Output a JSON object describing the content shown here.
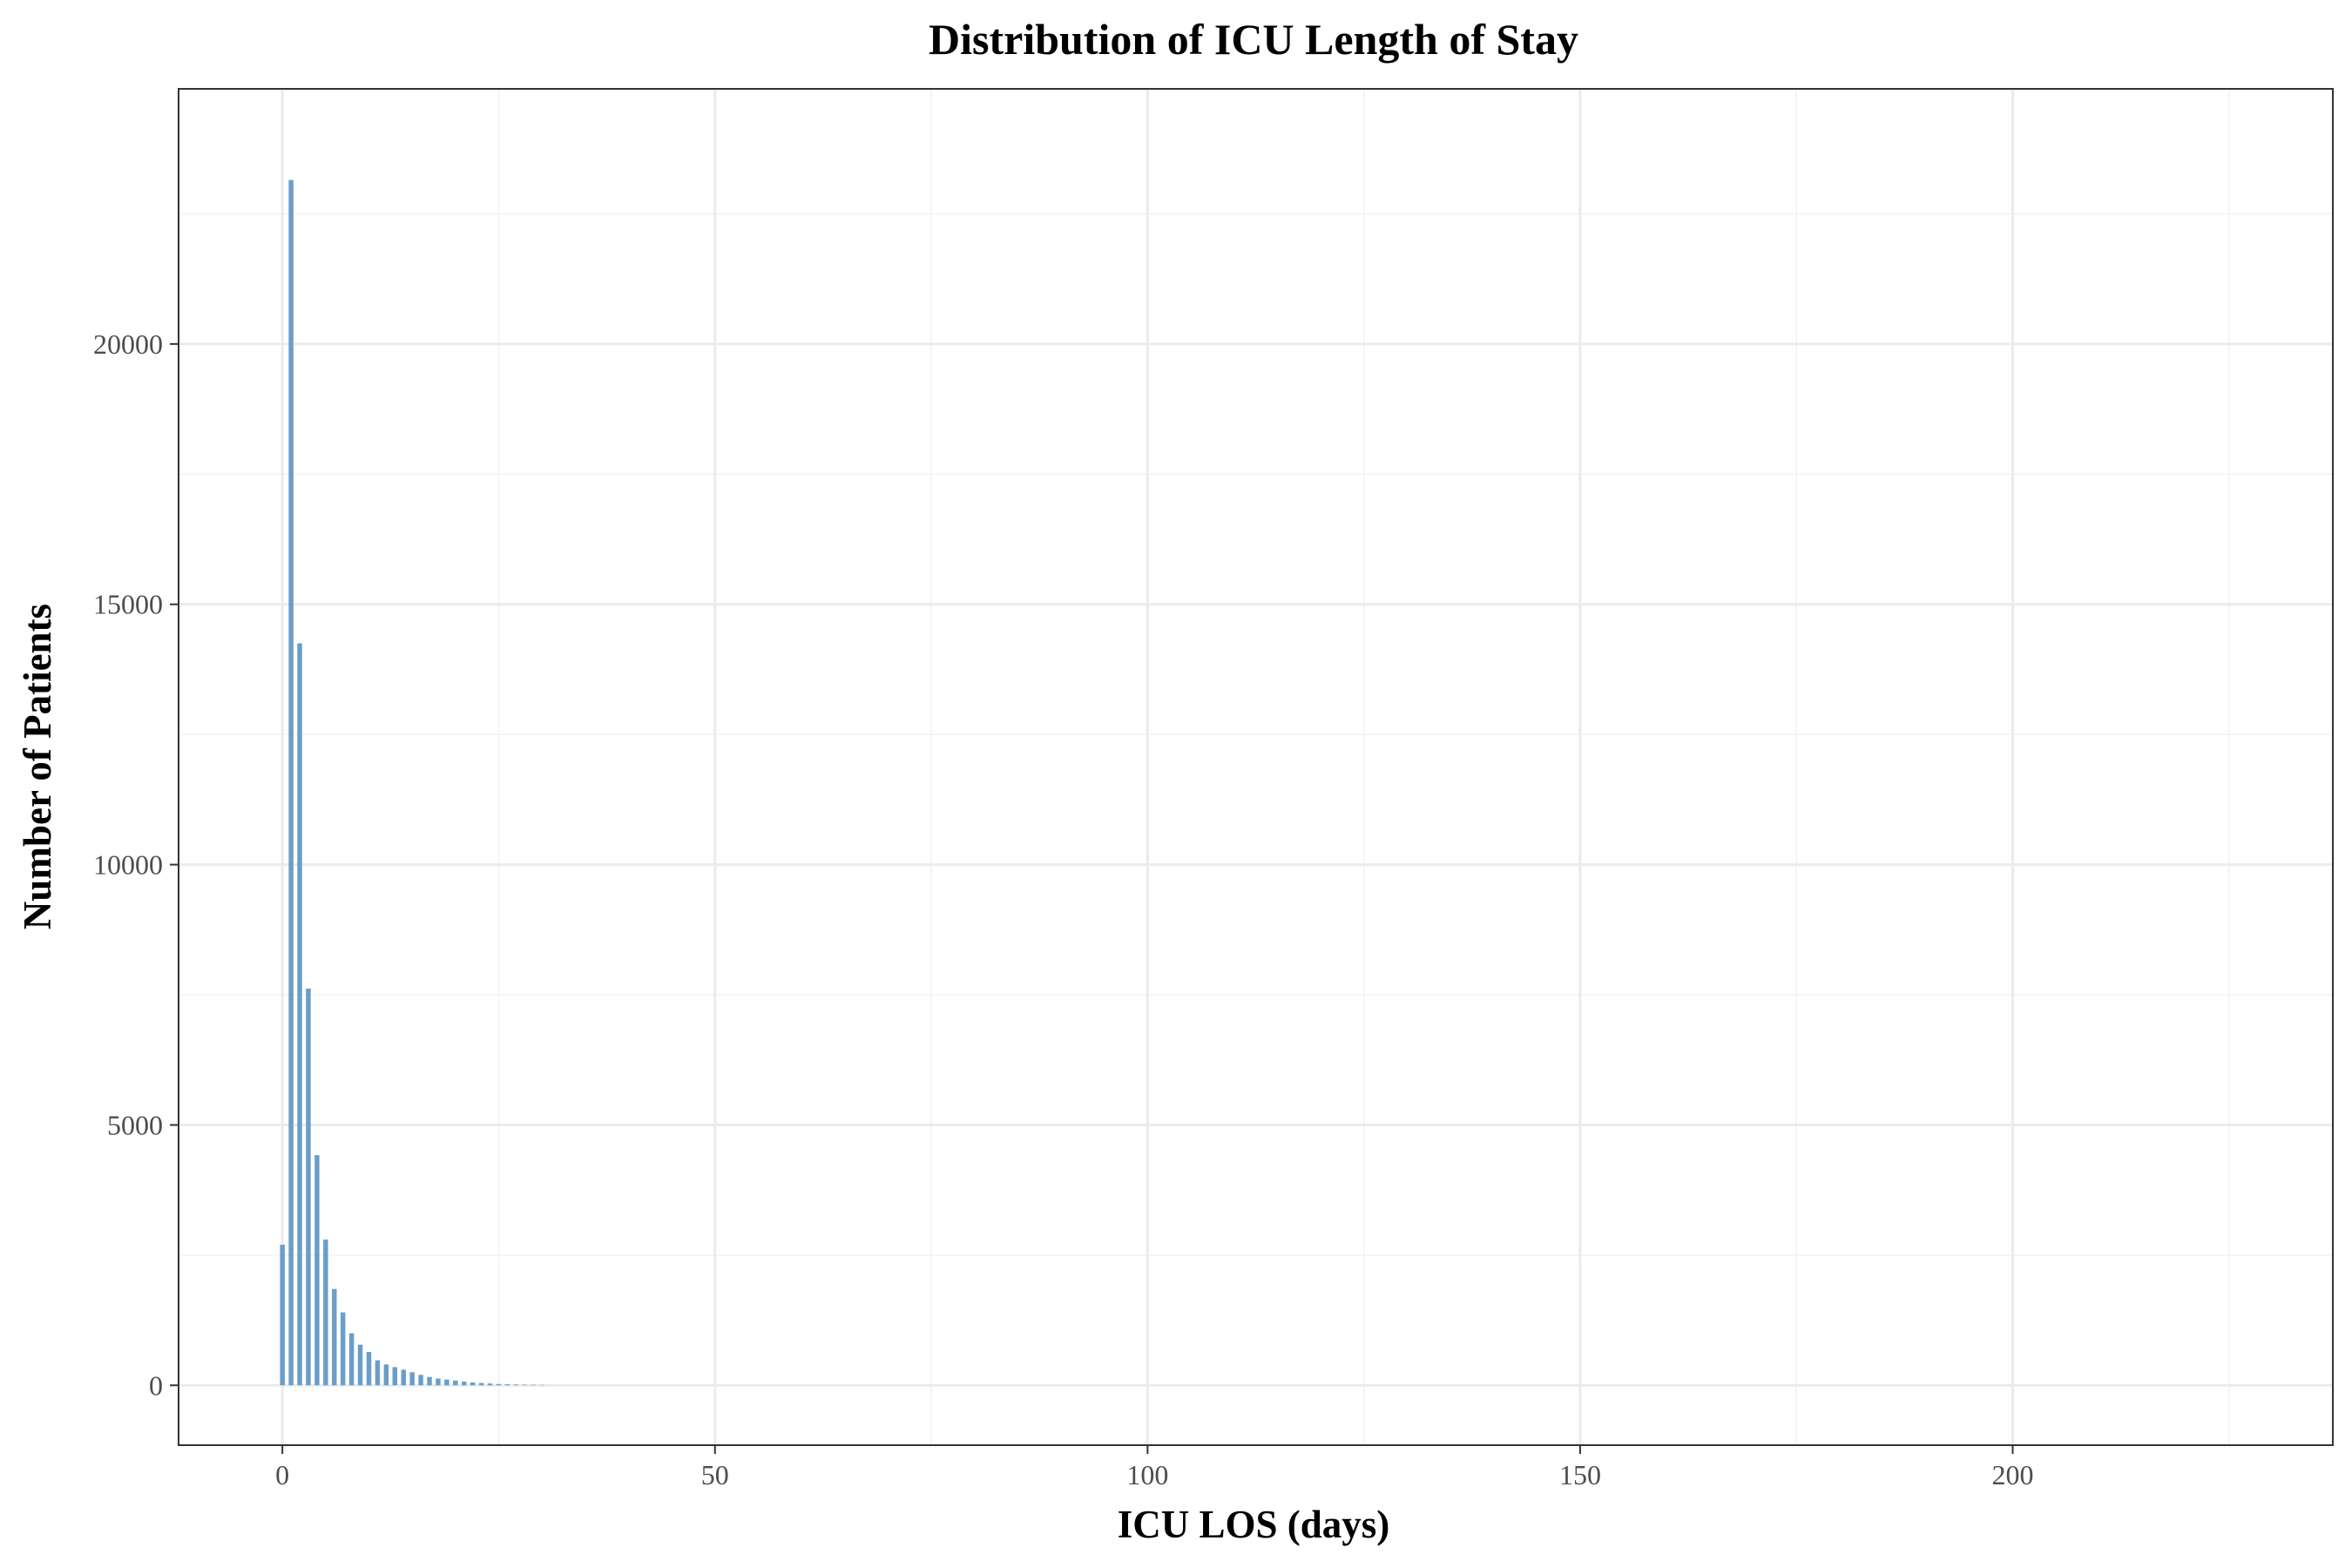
{
  "chart_data": {
    "type": "bar",
    "title": "Distribution of ICU Length of Stay",
    "xlabel": "ICU LOS (days)",
    "ylabel": "Number of Patients",
    "xlim": [
      -12,
      237
    ],
    "ylim": [
      -1150,
      24900
    ],
    "x_ticks": [
      0,
      50,
      100,
      150,
      200
    ],
    "y_ticks": [
      0,
      5000,
      10000,
      15000,
      20000
    ],
    "x_minor": [
      25,
      75,
      125,
      175,
      225
    ],
    "y_minor": [
      2500,
      7500,
      12500,
      17500,
      22500
    ],
    "grid": true,
    "bar_color": "#6a9ec9",
    "bars": [
      {
        "x": 0,
        "y": 2700
      },
      {
        "x": 1,
        "y": 23150
      },
      {
        "x": 2,
        "y": 14250
      },
      {
        "x": 3,
        "y": 7620
      },
      {
        "x": 4,
        "y": 4420
      },
      {
        "x": 5,
        "y": 2800
      },
      {
        "x": 6,
        "y": 1850
      },
      {
        "x": 7,
        "y": 1400
      },
      {
        "x": 8,
        "y": 1000
      },
      {
        "x": 9,
        "y": 780
      },
      {
        "x": 10,
        "y": 640
      },
      {
        "x": 11,
        "y": 480
      },
      {
        "x": 12,
        "y": 400
      },
      {
        "x": 13,
        "y": 350
      },
      {
        "x": 14,
        "y": 300
      },
      {
        "x": 15,
        "y": 250
      },
      {
        "x": 16,
        "y": 200
      },
      {
        "x": 17,
        "y": 160
      },
      {
        "x": 18,
        "y": 130
      },
      {
        "x": 19,
        "y": 110
      },
      {
        "x": 20,
        "y": 90
      },
      {
        "x": 21,
        "y": 70
      },
      {
        "x": 22,
        "y": 55
      },
      {
        "x": 23,
        "y": 45
      },
      {
        "x": 24,
        "y": 35
      },
      {
        "x": 25,
        "y": 25
      },
      {
        "x": 26,
        "y": 20
      },
      {
        "x": 27,
        "y": 15
      },
      {
        "x": 28,
        "y": 12
      },
      {
        "x": 29,
        "y": 10
      },
      {
        "x": 30,
        "y": 8
      }
    ]
  }
}
